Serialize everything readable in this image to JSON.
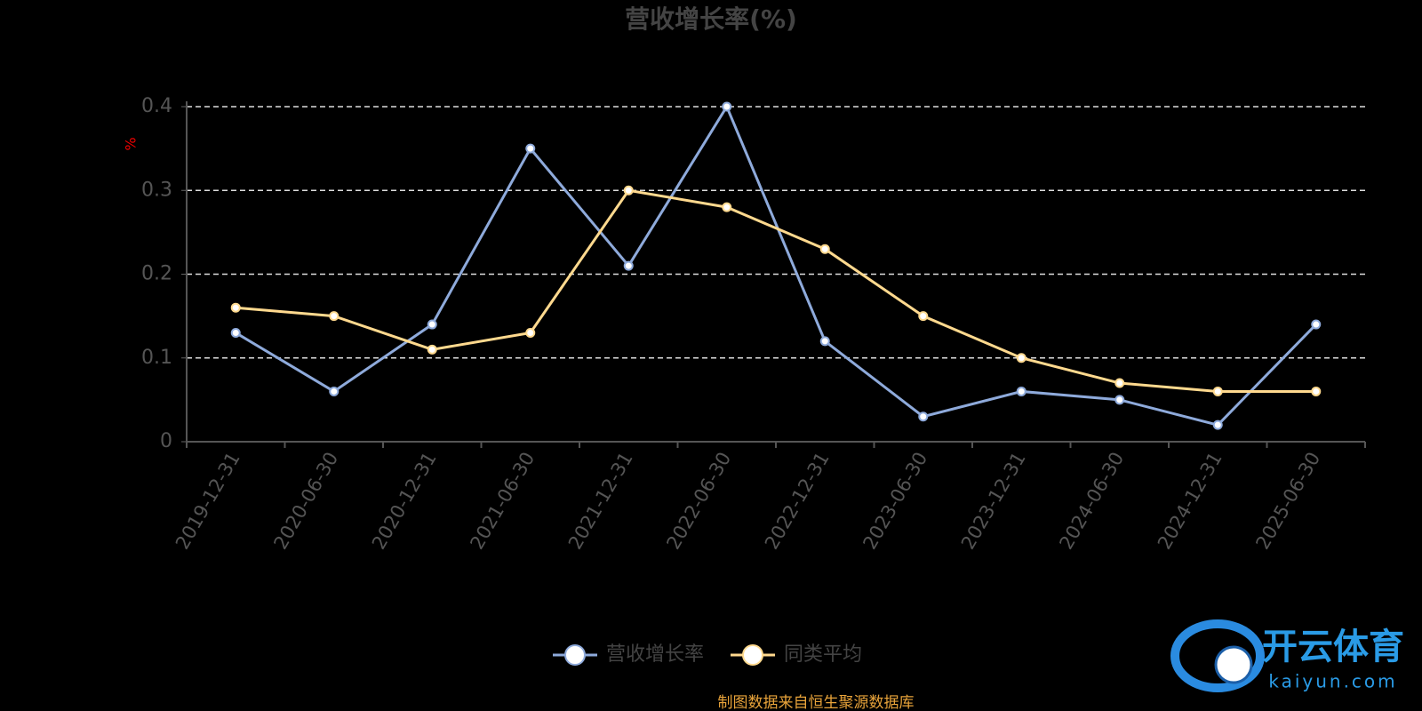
{
  "chart_data": {
    "type": "line",
    "title": "营收增长率(%)",
    "y_label": "%",
    "categories": [
      "2019-12-31",
      "2020-06-30",
      "2020-12-31",
      "2021-06-30",
      "2021-12-31",
      "2022-06-30",
      "2022-12-31",
      "2023-06-30",
      "2023-12-31",
      "2024-06-30",
      "2024-12-31",
      "2025-06-30"
    ],
    "series": [
      {
        "name": "营收增长率",
        "color": "#8eaadb",
        "values": [
          0.13,
          0.06,
          0.14,
          0.35,
          0.21,
          0.4,
          0.12,
          0.03,
          0.06,
          0.05,
          0.02,
          0.14
        ]
      },
      {
        "name": "同类平均",
        "color": "#ffd98e",
        "values": [
          0.16,
          0.15,
          0.11,
          0.13,
          0.3,
          0.28,
          0.23,
          0.15,
          0.1,
          0.07,
          0.06,
          0.06
        ]
      }
    ],
    "ylim": [
      0,
      0.4
    ],
    "yticks": [
      0,
      0.1,
      0.2,
      0.3,
      0.4
    ],
    "grid": true,
    "legend": "bottom",
    "source": "制图数据来自恒生聚源数据库",
    "watermark": {
      "name": "开云体育",
      "url": "kaiyun.com"
    }
  }
}
